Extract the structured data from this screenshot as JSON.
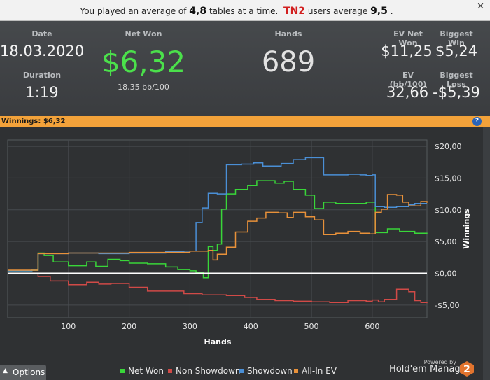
{
  "notice": {
    "prefix": "You played an average of",
    "avg_tables": "4,8",
    "mid": "tables at a time.",
    "site": "TN2",
    "users_text": "users average",
    "users_avg": "9,5",
    "suffix": ".",
    "close": "✕"
  },
  "stats": {
    "date_label": "Date",
    "date_value": "18.03.2020",
    "duration_label": "Duration",
    "duration_value": "1:19",
    "net_won_label": "Net Won",
    "net_won_value": "$6,32",
    "net_won_sub": "18,35 bb/100",
    "hands_label": "Hands",
    "hands_value": "689",
    "ev_net_won_label": "EV Net Won",
    "ev_net_won_value": "$11,25",
    "biggest_win_label": "Biggest Win",
    "biggest_win_value": "$5,24",
    "ev_bb_label": "EV (bb/100)",
    "ev_bb_value": "32,66",
    "biggest_loss_label": "Biggest Loss",
    "biggest_loss_value": "-$5,39"
  },
  "winnings_bar": {
    "label": "Winnings:",
    "value": "$6,32",
    "help": "?"
  },
  "chart_data": {
    "type": "line",
    "xlabel": "Hands",
    "ylabel": "Winnings",
    "xlim": [
      0,
      690
    ],
    "ylim": [
      -7,
      21
    ],
    "x_ticks": [
      100,
      200,
      300,
      400,
      500,
      600
    ],
    "y_ticks": [
      {
        "v": 20,
        "label": "$20,00"
      },
      {
        "v": 15,
        "label": "$15,00"
      },
      {
        "v": 10,
        "label": "$10,00"
      },
      {
        "v": 5,
        "label": "$5,00"
      },
      {
        "v": 0,
        "label": "$0,00"
      },
      {
        "v": -5,
        "label": "-$5,00"
      }
    ],
    "grid": true,
    "legend_position": "bottom",
    "series": [
      {
        "name": "Net Won",
        "color": "#39d639",
        "x": [
          0,
          40,
          45,
          50,
          60,
          75,
          100,
          130,
          145,
          165,
          185,
          200,
          230,
          260,
          280,
          300,
          310,
          322,
          330,
          338,
          345,
          352,
          360,
          375,
          395,
          410,
          440,
          455,
          470,
          490,
          505,
          520,
          540,
          560,
          590,
          600,
          605,
          625,
          645,
          670,
          690
        ],
        "y": [
          0.4,
          0.5,
          0.5,
          3.2,
          2.8,
          1.8,
          1.2,
          1.8,
          1.1,
          2.2,
          2.0,
          1.6,
          1.5,
          1.0,
          0.6,
          0.4,
          0.2,
          -0.7,
          4.2,
          3.6,
          4.6,
          10.1,
          12.5,
          13.2,
          13.8,
          14.6,
          14.2,
          14.5,
          13.2,
          12.3,
          10.2,
          11.2,
          11.0,
          11.0,
          11.2,
          11.2,
          6.4,
          7.0,
          6.6,
          6.3,
          6.2
        ]
      },
      {
        "name": "Non Showdown",
        "color": "#d14a47",
        "x": [
          0,
          50,
          70,
          100,
          130,
          150,
          170,
          200,
          230,
          260,
          290,
          320,
          340,
          360,
          390,
          410,
          440,
          470,
          500,
          530,
          560,
          590,
          600,
          610,
          620,
          640,
          660,
          670,
          680,
          690
        ],
        "y": [
          0.0,
          -0.5,
          -1.2,
          -1.8,
          -1.4,
          -1.7,
          -1.6,
          -2.2,
          -2.8,
          -2.8,
          -3.2,
          -3.4,
          -3.4,
          -3.5,
          -3.8,
          -4.1,
          -4.3,
          -4.4,
          -4.5,
          -4.6,
          -4.3,
          -4.4,
          -4.2,
          -4.5,
          -4.1,
          -2.5,
          -2.9,
          -4.3,
          -4.6,
          -4.7
        ]
      },
      {
        "name": "Showdown",
        "color": "#4a8fd6",
        "x": [
          0,
          40,
          45,
          50,
          80,
          100,
          130,
          150,
          180,
          200,
          230,
          260,
          290,
          310,
          320,
          330,
          345,
          360,
          385,
          405,
          420,
          450,
          470,
          490,
          520,
          540,
          560,
          580,
          590,
          600,
          605,
          620,
          640,
          660,
          670,
          690
        ],
        "y": [
          0.4,
          0.5,
          0.5,
          3.1,
          3.1,
          3.2,
          3.2,
          3.1,
          3.1,
          3.2,
          3.2,
          3.4,
          3.5,
          8.0,
          10.3,
          12.6,
          12.5,
          17.1,
          17.2,
          17.4,
          16.9,
          17.3,
          17.9,
          18.2,
          15.5,
          15.5,
          15.6,
          15.5,
          15.4,
          15.5,
          10.5,
          10.4,
          10.5,
          10.8,
          11.0,
          11.0
        ]
      },
      {
        "name": "All-In EV",
        "color": "#e8913a",
        "x": [
          0,
          40,
          45,
          50,
          100,
          200,
          300,
          330,
          338,
          345,
          360,
          375,
          395,
          410,
          425,
          445,
          460,
          470,
          490,
          505,
          520,
          540,
          560,
          580,
          595,
          605,
          615,
          625,
          640,
          650,
          660,
          670,
          680,
          690
        ],
        "y": [
          0.5,
          0.5,
          0.5,
          3.1,
          3.2,
          3.3,
          3.5,
          3.6,
          2.1,
          3.0,
          4.1,
          6.5,
          8.2,
          8.7,
          9.6,
          9.5,
          8.8,
          9.6,
          8.9,
          8.4,
          6.1,
          6.3,
          6.6,
          6.3,
          6.2,
          9.6,
          10.1,
          12.4,
          12.3,
          11.2,
          10.6,
          10.6,
          11.3,
          11.1
        ]
      }
    ]
  },
  "bottom": {
    "options_arrow": "▲",
    "options_label": "Options",
    "powered_by": "Powered by",
    "brand": "Hold'em Manager",
    "logo_text": "2"
  }
}
